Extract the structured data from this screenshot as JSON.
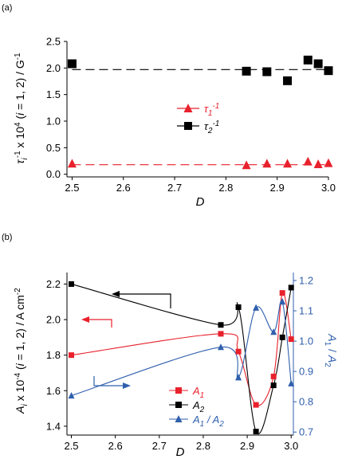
{
  "chart_data": [
    {
      "panel": "(a)",
      "type": "scatter",
      "xlabel": "D",
      "ylabel": "τi-1 x 10-4 (i = 1, 2) / G-1",
      "xlim": [
        2.49,
        3.0
      ],
      "ylim": [
        -0.05,
        2.5
      ],
      "x_ticks": [
        "2.5",
        "2.6",
        "2.7",
        "2.8",
        "2.9",
        "3.0"
      ],
      "y_ticks": [
        "0.0",
        "0.5",
        "1.0",
        "1.5",
        "2.0",
        "2.5"
      ],
      "legend": {
        "placement": "center",
        "entries": [
          "τ1-1",
          "τ2-1"
        ]
      },
      "colors": {
        "tau1": "#e8212c",
        "tau2": "#000000"
      },
      "series": [
        {
          "name": "τ1-1",
          "marker": "triangle",
          "x": [
            2.5,
            2.84,
            2.88,
            2.92,
            2.96,
            2.98,
            3.0
          ],
          "y": [
            0.2,
            0.17,
            0.2,
            0.2,
            0.24,
            0.19,
            0.21
          ],
          "reference_line": 0.18
        },
        {
          "name": "τ2-1",
          "marker": "square",
          "x": [
            2.5,
            2.84,
            2.88,
            2.92,
            2.96,
            2.98,
            3.0
          ],
          "y": [
            2.08,
            1.94,
            1.93,
            1.76,
            2.15,
            2.08,
            1.95
          ],
          "reference_line": 1.97
        }
      ]
    },
    {
      "panel": "(b)",
      "type": "line",
      "xlabel": "D",
      "ylabel": "Ai x 10-4 (i = 1, 2) / A cm-2",
      "ylabel_right": "A1 / A2",
      "xlim": [
        2.49,
        3.005
      ],
      "ylim": [
        1.35,
        2.22
      ],
      "ylim_right": [
        0.69,
        1.2
      ],
      "x_ticks": [
        "2.5",
        "2.6",
        "2.7",
        "2.8",
        "2.9",
        "3.0"
      ],
      "y_ticks": [
        "1.4",
        "1.6",
        "1.8",
        "2.0",
        "2.2"
      ],
      "y_ticks_right": [
        "0.7",
        "0.8",
        "0.9",
        "1.0",
        "1.1",
        "1.2"
      ],
      "legend": {
        "placement": "bottom-right",
        "entries": [
          "A1",
          "A2",
          "A1 / A2"
        ]
      },
      "colors": {
        "A1": "#e8212c",
        "A2": "#000000",
        "A1/A2": "#2f5fad"
      },
      "series": [
        {
          "name": "A1",
          "axis": "left",
          "marker": "square",
          "x": [
            2.5,
            2.84,
            2.88,
            2.92,
            2.96,
            2.98,
            3.0
          ],
          "y": [
            1.8,
            1.92,
            1.82,
            1.52,
            1.68,
            2.15,
            1.89
          ]
        },
        {
          "name": "A2",
          "axis": "left",
          "marker": "square",
          "x": [
            2.5,
            2.84,
            2.88,
            2.92,
            2.96,
            2.98,
            3.0
          ],
          "y": [
            2.2,
            1.97,
            2.07,
            1.37,
            1.63,
            1.9,
            2.18
          ]
        },
        {
          "name": "A1 / A2",
          "axis": "right",
          "marker": "triangle",
          "x": [
            2.5,
            2.84,
            2.88,
            2.92,
            2.96,
            2.98,
            3.0
          ],
          "y": [
            0.82,
            0.98,
            0.88,
            1.11,
            1.03,
            1.13,
            0.86
          ]
        }
      ],
      "arrows": [
        {
          "series": "A2",
          "direction": "left"
        },
        {
          "series": "A1",
          "direction": "left"
        },
        {
          "series": "A1 / A2",
          "direction": "right"
        }
      ]
    }
  ]
}
